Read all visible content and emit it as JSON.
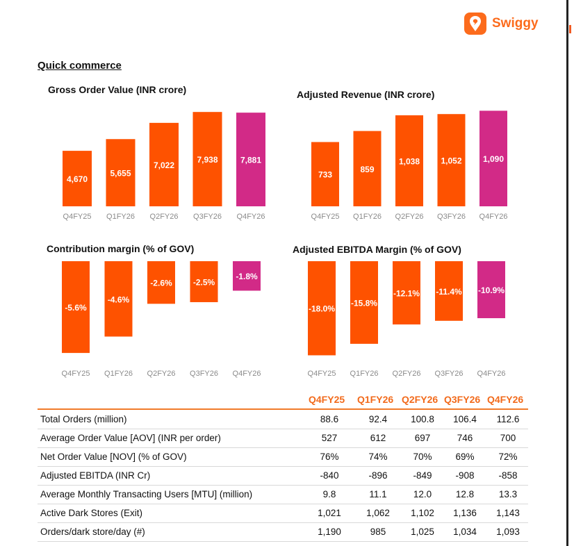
{
  "brand": {
    "name": "Swiggy",
    "icon": "swiggy-logo-icon",
    "color": "#fc6b1c"
  },
  "section_title": "Quick commerce",
  "colors": {
    "orange": "#fe5200",
    "magenta": "#d22a87",
    "header": "#f26a1b"
  },
  "chart_data": [
    {
      "type": "bar",
      "title": "Gross Order Value (INR crore)",
      "categories": [
        "Q4FY25",
        "Q1FY26",
        "Q2FY26",
        "Q3FY26",
        "Q4FY26"
      ],
      "values": [
        4670,
        5655,
        7022,
        7938,
        7881
      ],
      "value_labels": [
        "4,670",
        "5,655",
        "7,022",
        "7,938",
        "7,881"
      ],
      "ylim": [
        0,
        8300
      ],
      "highlight_last": true
    },
    {
      "type": "bar",
      "title": "Adjusted Revenue (INR crore)",
      "categories": [
        "Q4FY25",
        "Q1FY26",
        "Q2FY26",
        "Q3FY26",
        "Q4FY26"
      ],
      "values": [
        733,
        859,
        1038,
        1052,
        1090
      ],
      "value_labels": [
        "733",
        "859",
        "1,038",
        "1,052",
        "1,090"
      ],
      "ylim": [
        0,
        1125
      ],
      "highlight_last": true
    },
    {
      "type": "bar",
      "title": "Contribution margin (% of GOV)",
      "categories": [
        "Q4FY25",
        "Q1FY26",
        "Q2FY26",
        "Q3FY26",
        "Q4FY26"
      ],
      "values": [
        -5.6,
        -4.6,
        -2.6,
        -2.5,
        -1.8
      ],
      "value_labels": [
        "-5.6%",
        "-4.6%",
        "-2.6%",
        "-2.5%",
        "-1.8%"
      ],
      "ylim": [
        -5.85,
        0
      ],
      "highlight_last": true
    },
    {
      "type": "bar",
      "title": "Adjusted EBITDA Margin (% of GOV)",
      "categories": [
        "Q4FY25",
        "Q1FY26",
        "Q2FY26",
        "Q3FY26",
        "Q4FY26"
      ],
      "values": [
        -18.0,
        -15.8,
        -12.1,
        -11.4,
        -10.9
      ],
      "value_labels": [
        "-18.0%",
        "-15.8%",
        "-12.1%",
        "-11.4%",
        "-10.9%"
      ],
      "ylim": [
        -18.6,
        0
      ],
      "highlight_last": true
    }
  ],
  "table": {
    "headers": [
      "Q4FY25",
      "Q1FY26",
      "Q2FY26",
      "Q3FY26",
      "Q4FY26"
    ],
    "rows": [
      {
        "label": "Total Orders (million)",
        "values": [
          "88.6",
          "92.4",
          "100.8",
          "106.4",
          "112.6"
        ]
      },
      {
        "label": "Average Order Value [AOV] (INR per order)",
        "values": [
          "527",
          "612",
          "697",
          "746",
          "700"
        ]
      },
      {
        "label": "Net Order Value [NOV] (% of GOV)",
        "values": [
          "76%",
          "74%",
          "70%",
          "69%",
          "72%"
        ]
      },
      {
        "label": "Adjusted EBITDA (INR Cr)",
        "values": [
          "-840",
          "-896",
          "-849",
          "-908",
          "-858"
        ]
      },
      {
        "label": "Average Monthly Transacting Users [MTU] (million)",
        "values": [
          "9.8",
          "11.1",
          "12.0",
          "12.8",
          "13.3"
        ]
      },
      {
        "label": "Active Dark Stores (Exit)",
        "values": [
          "1,021",
          "1,062",
          "1,102",
          "1,136",
          "1,143"
        ]
      },
      {
        "label": "Orders/dark store/day (#)",
        "values": [
          "1,190",
          "985",
          "1,025",
          "1,034",
          "1,093"
        ]
      }
    ]
  }
}
